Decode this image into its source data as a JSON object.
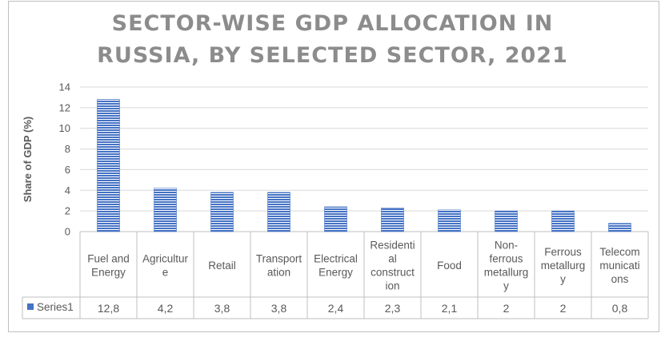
{
  "chart_data": {
    "type": "bar",
    "title_lines": [
      "SECTOR-WISE GDP ALLOCATION IN",
      "RUSSIA, BY SELECTED SECTOR, 2021"
    ],
    "ylabel": "Share of GDP (%)",
    "xlabel": "",
    "ylim": [
      0,
      14
    ],
    "yticks": [
      0,
      2,
      4,
      6,
      8,
      10,
      12,
      14
    ],
    "grid": true,
    "data_table": true,
    "bar_color": "#4472c4",
    "bar_pattern": "horizontal-stripes",
    "categories": [
      [
        "Fuel and",
        "Energy"
      ],
      [
        "Agricultur",
        "e"
      ],
      [
        "Retail"
      ],
      [
        "Transport",
        "ation"
      ],
      [
        "Electrical",
        "Energy"
      ],
      [
        "Residenti",
        "al",
        "construct",
        "ion"
      ],
      [
        "Food"
      ],
      [
        "Non-",
        "ferrous",
        "metallurg",
        "y"
      ],
      [
        "Ferrous",
        "metallurg",
        "y"
      ],
      [
        "Telecom",
        "municati",
        "ons"
      ]
    ],
    "series": [
      {
        "name": "Series1",
        "values": [
          12.8,
          4.2,
          3.8,
          3.8,
          2.4,
          2.3,
          2.1,
          2,
          2,
          0.8
        ],
        "labels": [
          "12,8",
          "4,2",
          "3,8",
          "3,8",
          "2,4",
          "2,3",
          "2,1",
          "2",
          "2",
          "0,8"
        ]
      }
    ]
  }
}
